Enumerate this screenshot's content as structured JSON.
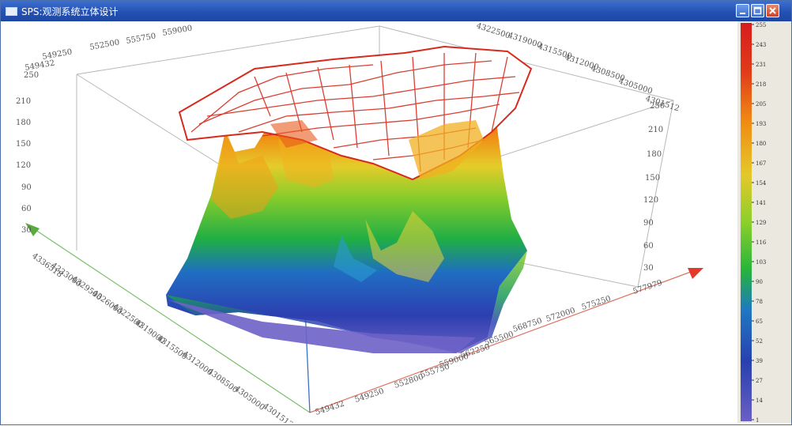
{
  "window": {
    "title": "SPS:观测系统立体设计"
  },
  "chart_data": {
    "type": "surface-3d",
    "title": "",
    "x_axis_ticks": [
      "549432",
      "549250",
      "552800",
      "555750",
      "559000",
      "562250",
      "565500",
      "568750",
      "572000",
      "575250",
      "577979"
    ],
    "y_axis_ticks": [
      "4336518",
      "4333000",
      "4329500",
      "4326000",
      "4322500",
      "4319000",
      "4315500",
      "4312000",
      "4308500",
      "4305000",
      "4301512"
    ],
    "z_axis_ticks": [
      "250",
      "210",
      "180",
      "150",
      "120",
      "90",
      "60",
      "30"
    ],
    "z_axis_ticks_right": [
      "250",
      "210",
      "180",
      "150",
      "120",
      "90",
      "60",
      "30"
    ],
    "back_x_ticks": [
      "549432",
      "549250",
      "552500",
      "555750",
      "559000"
    ],
    "back_y_ticks": [
      "4322500",
      "4319000",
      "4315500",
      "4312000",
      "4308500",
      "4305000",
      "4301512"
    ],
    "colorbar": {
      "ticks": [
        "255",
        "243",
        "231",
        "218",
        "205",
        "193",
        "180",
        "167",
        "154",
        "141",
        "129",
        "116",
        "103",
        "90",
        "78",
        "65",
        "52",
        "39",
        "27",
        "14",
        "1"
      ],
      "colors": [
        "#d71d1d",
        "#e8471a",
        "#f08c14",
        "#e5c82a",
        "#8ccf2b",
        "#26b53a",
        "#1f78c2",
        "#2740b0",
        "#6a5fc4"
      ]
    }
  }
}
